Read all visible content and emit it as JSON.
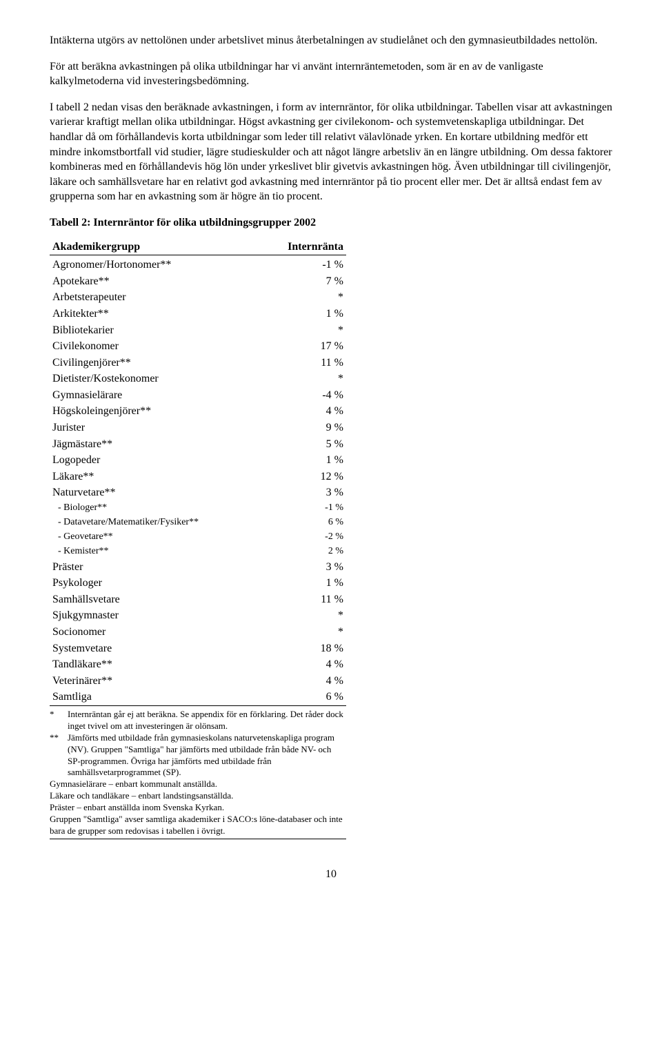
{
  "paragraphs": {
    "p1": "Intäkterna utgörs av nettolönen under arbetslivet minus återbetalningen av studielånet och den gymnasieutbildades nettolön.",
    "p2": "För att beräkna avkastningen på olika utbildningar har vi använt internräntemetoden, som är en av de vanligaste kalkylmetoderna vid investeringsbedömning.",
    "p3": "I tabell 2 nedan visas den beräknade avkastningen, i form av internräntor, för olika utbildningar. Tabellen visar att avkastningen varierar kraftigt mellan olika utbildningar. Högst avkastning ger civilekonom- och systemvetenskapliga utbildningar. Det handlar då om förhållandevis korta utbildningar som leder till relativt välavlönade yrken. En kortare utbildning medför ett mindre inkomstbortfall vid studier, lägre studieskulder och att något längre arbetsliv än en längre utbildning. Om dessa faktorer kombineras med en förhållandevis hög lön under yrkeslivet blir givetvis avkastningen hög. Även utbildningar till civilingenjör, läkare och samhällsvetare har en relativt god avkastning med internräntor på tio procent eller mer. Det är alltså endast fem av grupperna som har en avkastning som är högre än tio procent."
  },
  "table": {
    "title": "Tabell 2: Internräntor för olika utbildningsgrupper 2002",
    "col1": "Akademikergrupp",
    "col2": "Internränta",
    "rows": [
      {
        "label": "Agronomer/Hortonomer**",
        "value": "-1 %",
        "sub": false
      },
      {
        "label": "Apotekare**",
        "value": "7 %",
        "sub": false
      },
      {
        "label": "Arbetsterapeuter",
        "value": "*",
        "sub": false
      },
      {
        "label": "Arkitekter**",
        "value": "1 %",
        "sub": false
      },
      {
        "label": "Bibliotekarier",
        "value": "*",
        "sub": false
      },
      {
        "label": "Civilekonomer",
        "value": "17 %",
        "sub": false
      },
      {
        "label": "Civilingenjörer**",
        "value": "11 %",
        "sub": false
      },
      {
        "label": "Dietister/Kostekonomer",
        "value": "*",
        "sub": false
      },
      {
        "label": "Gymnasielärare",
        "value": "-4 %",
        "sub": false
      },
      {
        "label": "Högskoleingenjörer**",
        "value": "4 %",
        "sub": false
      },
      {
        "label": "Jurister",
        "value": "9 %",
        "sub": false
      },
      {
        "label": "Jägmästare**",
        "value": "5 %",
        "sub": false
      },
      {
        "label": "Logopeder",
        "value": "1 %",
        "sub": false
      },
      {
        "label": "Läkare**",
        "value": "12 %",
        "sub": false
      },
      {
        "label": "Naturvetare**",
        "value": "3 %",
        "sub": false
      },
      {
        "label": "- Biologer**",
        "value": "-1 %",
        "sub": true
      },
      {
        "label": "- Datavetare/Matematiker/Fysiker**",
        "value": "6 %",
        "sub": true
      },
      {
        "label": "- Geovetare**",
        "value": "-2 %",
        "sub": true
      },
      {
        "label": "- Kemister**",
        "value": "2 %",
        "sub": true
      },
      {
        "label": "Präster",
        "value": "3 %",
        "sub": false
      },
      {
        "label": "Psykologer",
        "value": "1 %",
        "sub": false
      },
      {
        "label": "Samhällsvetare",
        "value": "11 %",
        "sub": false
      },
      {
        "label": "Sjukgymnaster",
        "value": "*",
        "sub": false
      },
      {
        "label": "Socionomer",
        "value": "*",
        "sub": false
      },
      {
        "label": "Systemvetare",
        "value": "18 %",
        "sub": false
      },
      {
        "label": "Tandläkare**",
        "value": "4 %",
        "sub": false
      },
      {
        "label": "Veterinärer**",
        "value": "4 %",
        "sub": false
      },
      {
        "label": "Samtliga",
        "value": "6 %",
        "sub": false
      }
    ]
  },
  "footnotes": {
    "f1_marker": "*",
    "f1_text": "Internräntan går ej att beräkna. Se appendix för en förklaring. Det råder dock inget tvivel om att investeringen är olönsam.",
    "f2_marker": "**",
    "f2_text": "Jämförts med utbildade från gymnasieskolans naturvetenskapliga program (NV). Gruppen \"Samtliga\" har jämförts med utbildade från både NV- och SP-programmen. Övriga har jämförts med utbildade från samhällsvetarprogrammet (SP).",
    "l1": "Gymnasielärare – enbart kommunalt anställda.",
    "l2": "Läkare och tandläkare – enbart landstingsanställda.",
    "l3": "Präster – enbart anställda inom Svenska Kyrkan.",
    "l4": "Gruppen \"Samtliga\" avser samtliga akademiker i SACO:s löne-databaser och inte bara de grupper som redovisas i tabellen i övrigt."
  },
  "page_number": "10"
}
